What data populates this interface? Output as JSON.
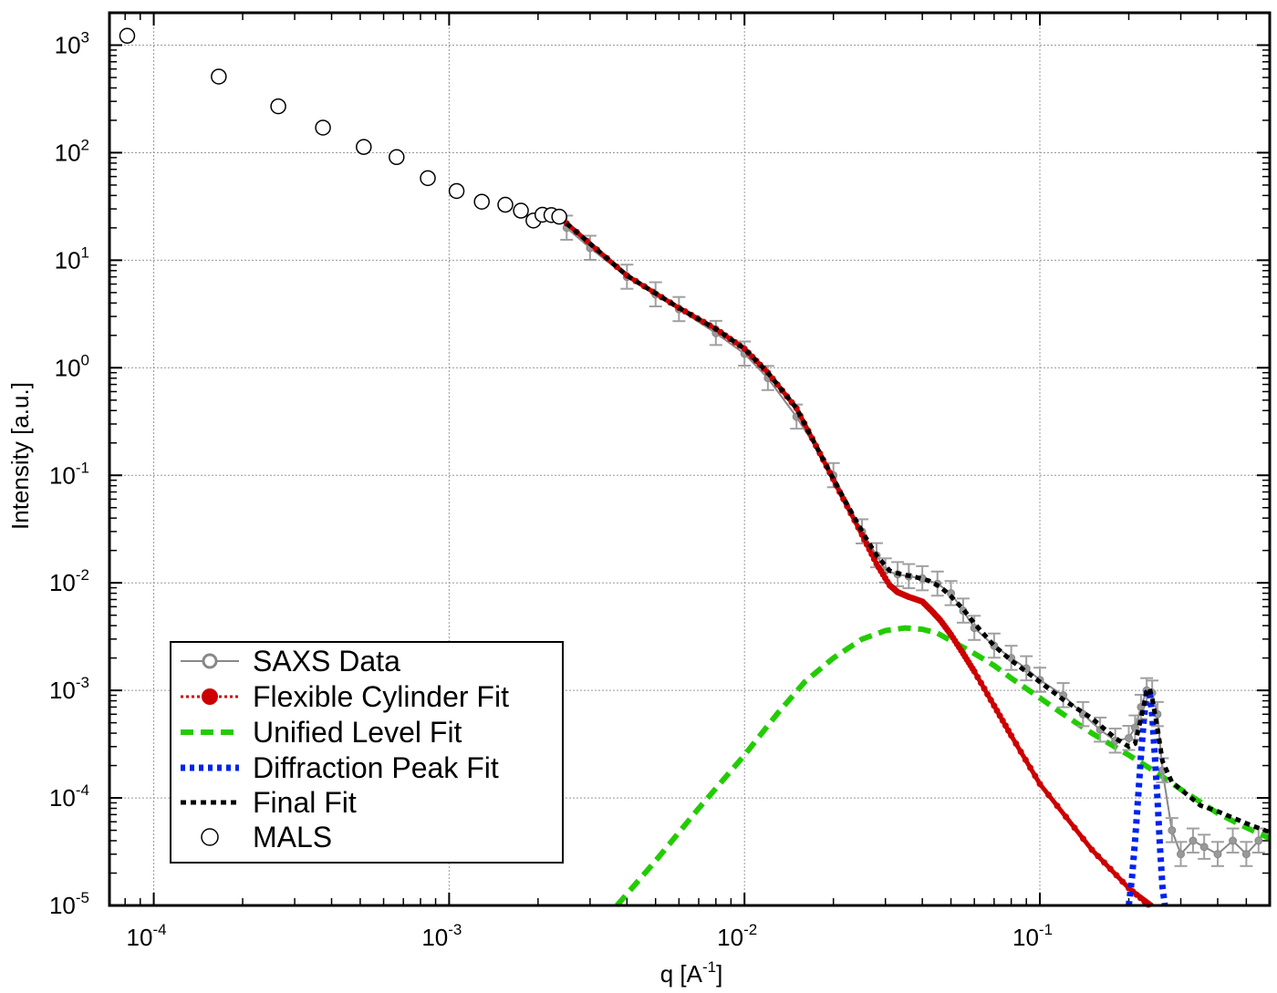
{
  "chart_data": {
    "type": "scatter",
    "scale": {
      "x": "log",
      "y": "log"
    },
    "xlabel": "q [A",
    "xlabel_exponent": "-1",
    "xlabel_suffix": "]",
    "ylabel": "Intensity [a.u.]",
    "xlim": [
      7.08e-05,
      0.6
    ],
    "ylim": [
      1e-05,
      2000
    ],
    "x_ticks": [
      {
        "value": 0.0001,
        "base": "10",
        "exp": "-4"
      },
      {
        "value": 0.001,
        "base": "10",
        "exp": "-3"
      },
      {
        "value": 0.01,
        "base": "10",
        "exp": "-2"
      },
      {
        "value": 0.1,
        "base": "10",
        "exp": "-1"
      }
    ],
    "y_ticks": [
      {
        "value": 1000,
        "base": "10",
        "exp": "3"
      },
      {
        "value": 100,
        "base": "10",
        "exp": "2"
      },
      {
        "value": 10,
        "base": "10",
        "exp": "1"
      },
      {
        "value": 1,
        "base": "10",
        "exp": "0"
      },
      {
        "value": 0.1,
        "base": "10",
        "exp": "-1"
      },
      {
        "value": 0.01,
        "base": "10",
        "exp": "-2"
      },
      {
        "value": 0.001,
        "base": "10",
        "exp": "-3"
      },
      {
        "value": 0.0001,
        "base": "10",
        "exp": "-4"
      },
      {
        "value": 1e-05,
        "base": "10",
        "exp": "-5"
      }
    ],
    "grid": true,
    "legend_position": "bottom-left",
    "legend": [
      {
        "label": "SAXS Data",
        "style": "saxs"
      },
      {
        "label": "Flexible Cylinder Fit",
        "style": "cyl"
      },
      {
        "label": "Unified Level Fit",
        "style": "uni"
      },
      {
        "label": "Diffraction Peak Fit",
        "style": "peak"
      },
      {
        "label": "Final Fit",
        "style": "final"
      },
      {
        "label": "MALS",
        "style": "mals"
      }
    ],
    "colors": {
      "saxs": "#888888",
      "cylinder": "#cc0000",
      "unified": "#22cc00",
      "peak": "#0022ee",
      "final": "#000000",
      "mals": "#000000"
    },
    "series": [
      {
        "name": "MALS",
        "x": [
          8.13e-05,
          0.000166,
          0.000264,
          0.000374,
          0.000514,
          0.000664,
          0.000847,
          0.00106,
          0.00129,
          0.00155,
          0.00175,
          0.00193,
          0.00207,
          0.00222,
          0.00236
        ],
        "y": [
          1221,
          510,
          270,
          171,
          113,
          91,
          58,
          44,
          35,
          32.8,
          28.9,
          23.4,
          26.5,
          26.3,
          25.4
        ]
      },
      {
        "name": "SAXS Data",
        "x": [
          0.0025,
          0.003,
          0.004,
          0.005,
          0.006,
          0.008,
          0.01,
          0.012,
          0.015,
          0.02,
          0.025,
          0.028,
          0.03,
          0.033,
          0.036,
          0.04,
          0.045,
          0.05,
          0.055,
          0.06,
          0.07,
          0.08,
          0.09,
          0.1,
          0.12,
          0.14,
          0.16,
          0.18,
          0.2,
          0.21,
          0.22,
          0.23,
          0.24,
          0.25,
          0.26,
          0.28,
          0.3,
          0.33,
          0.36,
          0.4,
          0.45,
          0.5,
          0.55
        ],
        "y": [
          20,
          13,
          7,
          4.8,
          3.5,
          2.1,
          1.35,
          0.8,
          0.35,
          0.1,
          0.03,
          0.018,
          0.013,
          0.012,
          0.0115,
          0.011,
          0.0098,
          0.008,
          0.0055,
          0.0038,
          0.0026,
          0.002,
          0.0016,
          0.00125,
          0.0009,
          0.0006,
          0.00043,
          0.00034,
          0.00036,
          0.00045,
          0.0007,
          0.001,
          0.00095,
          0.0006,
          0.00018,
          5e-05,
          3e-05,
          4e-05,
          3.5e-05,
          3e-05,
          4e-05,
          3e-05,
          4e-05
        ],
        "error_fraction": 0.15
      },
      {
        "name": "Flexible Cylinder Fit",
        "x": [
          0.0025,
          0.004,
          0.006,
          0.008,
          0.01,
          0.012,
          0.015,
          0.018,
          0.021,
          0.025,
          0.028,
          0.031,
          0.033,
          0.036,
          0.04,
          0.043,
          0.046,
          0.05,
          0.055,
          0.06,
          0.07,
          0.08,
          0.1,
          0.15,
          0.2,
          0.24
        ],
        "y": [
          22,
          7.2,
          3.6,
          2.3,
          1.5,
          0.9,
          0.42,
          0.16,
          0.07,
          0.028,
          0.015,
          0.0095,
          0.0082,
          0.0074,
          0.0067,
          0.0055,
          0.0045,
          0.0033,
          0.0022,
          0.0015,
          0.00072,
          0.00038,
          0.000135,
          3.3e-05,
          1.45e-05,
          9.5e-06
        ]
      },
      {
        "name": "Unified Level Fit",
        "x": [
          0.0037,
          0.005,
          0.007,
          0.01,
          0.013,
          0.016,
          0.02,
          0.025,
          0.03,
          0.035,
          0.04,
          0.045,
          0.05,
          0.06,
          0.07,
          0.08,
          0.1,
          0.12,
          0.15,
          0.2,
          0.25,
          0.3,
          0.4,
          0.5,
          0.6
        ],
        "y": [
          1e-05,
          2.6e-05,
          8e-05,
          0.00025,
          0.00062,
          0.0012,
          0.002,
          0.003,
          0.0036,
          0.0038,
          0.0037,
          0.0034,
          0.0029,
          0.0022,
          0.0017,
          0.0013,
          0.00085,
          0.0006,
          0.0004,
          0.00025,
          0.00017,
          0.00012,
          7.2e-05,
          5.3e-05,
          4.2e-05
        ]
      },
      {
        "name": "Diffraction Peak Fit",
        "x": [
          0.2,
          0.205,
          0.21,
          0.215,
          0.22,
          0.225,
          0.23,
          0.235,
          0.24,
          0.245,
          0.25,
          0.255,
          0.26,
          0.265
        ],
        "y": [
          1e-05,
          1.8e-05,
          4e-05,
          0.0001,
          0.00025,
          0.00055,
          0.00095,
          0.00098,
          0.0006,
          0.00025,
          0.0001,
          3.5e-05,
          1.5e-05,
          1e-05
        ]
      },
      {
        "name": "Final Fit",
        "x": [
          0.0025,
          0.004,
          0.006,
          0.008,
          0.01,
          0.012,
          0.015,
          0.018,
          0.021,
          0.025,
          0.028,
          0.031,
          0.034,
          0.038,
          0.042,
          0.046,
          0.05,
          0.055,
          0.06,
          0.07,
          0.08,
          0.1,
          0.12,
          0.15,
          0.18,
          0.2,
          0.21,
          0.22,
          0.23,
          0.235,
          0.24,
          0.25,
          0.26,
          0.28,
          0.3,
          0.35,
          0.4,
          0.5,
          0.6
        ],
        "y": [
          22,
          7.2,
          3.6,
          2.3,
          1.5,
          0.9,
          0.42,
          0.16,
          0.072,
          0.03,
          0.018,
          0.013,
          0.012,
          0.0113,
          0.0105,
          0.0092,
          0.0075,
          0.0057,
          0.0042,
          0.0026,
          0.0019,
          0.0012,
          0.00082,
          0.00055,
          0.00036,
          0.0003,
          0.00032,
          0.00055,
          0.00097,
          0.00105,
          0.00085,
          0.00045,
          0.00022,
          0.00014,
          0.00012,
          8.5e-05,
          7.5e-05,
          5.8e-05,
          4.8e-05
        ]
      }
    ]
  }
}
